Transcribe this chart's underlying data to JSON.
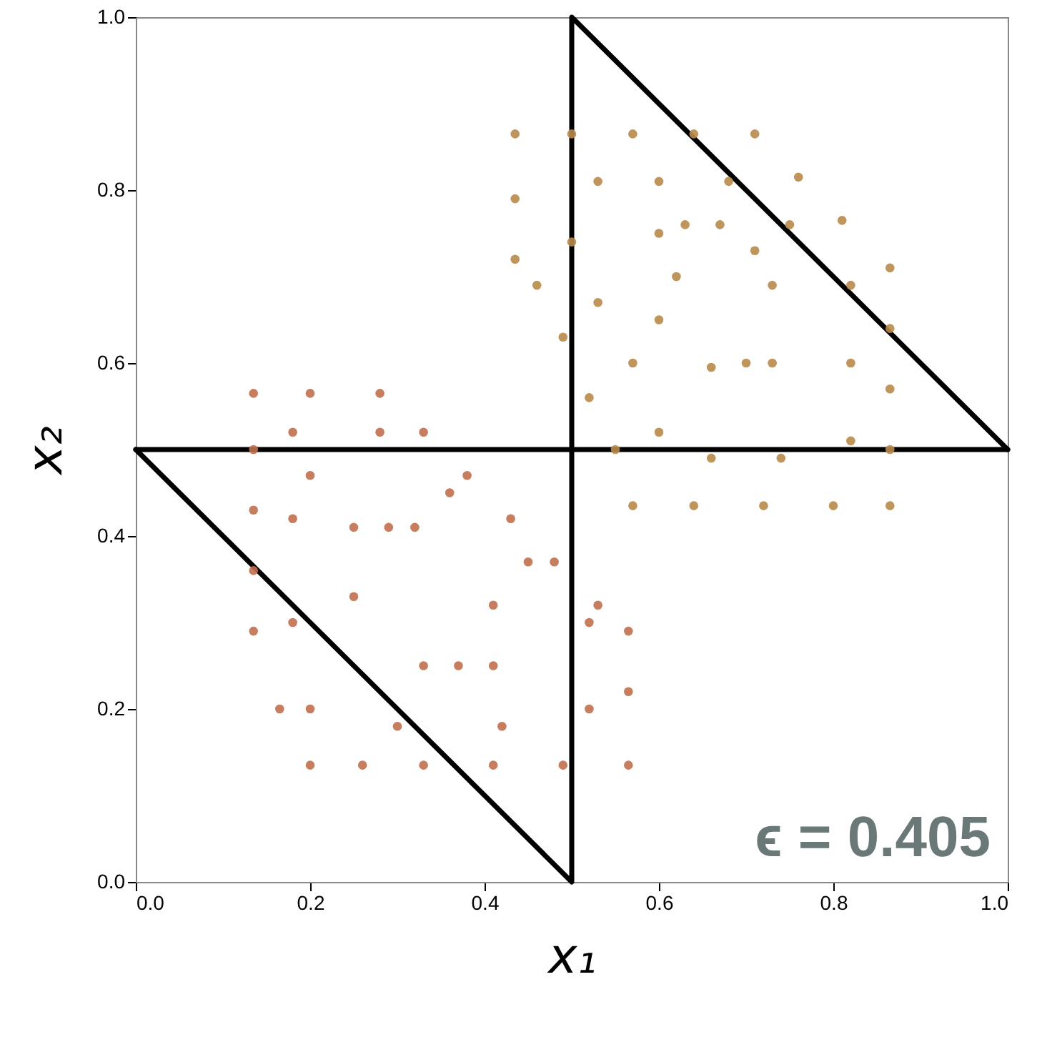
{
  "chart_data": {
    "type": "scatter",
    "xlabel": "x₁",
    "ylabel": "x₂",
    "xlim": [
      0,
      1
    ],
    "ylim": [
      0,
      1
    ],
    "xticks": [
      {
        "value": 0,
        "label": "0.0"
      },
      {
        "value": 0.2,
        "label": "0.2"
      },
      {
        "value": 0.4,
        "label": "0.4"
      },
      {
        "value": 0.6,
        "label": "0.6"
      },
      {
        "value": 0.8,
        "label": "0.8"
      },
      {
        "value": 1,
        "label": "1.0"
      }
    ],
    "yticks": [
      {
        "value": 0,
        "label": "0.0"
      },
      {
        "value": 0.2,
        "label": "0.2"
      },
      {
        "value": 0.4,
        "label": "0.4"
      },
      {
        "value": 0.6,
        "label": "0.6"
      },
      {
        "value": 0.8,
        "label": "0.8"
      },
      {
        "value": 1,
        "label": "1.0"
      }
    ],
    "grid": false,
    "annotations": [
      "ϵ = 0.405"
    ],
    "series": [
      {
        "color": "#b98a4a",
        "x": [
          0.435,
          0.5,
          0.57,
          0.64,
          0.71,
          0.76,
          0.81,
          0.865,
          0.865,
          0.865,
          0.865,
          0.865,
          0.8,
          0.72,
          0.64,
          0.57,
          0.55,
          0.52,
          0.49,
          0.46,
          0.435,
          0.435,
          0.53,
          0.6,
          0.68,
          0.75,
          0.82,
          0.82,
          0.82,
          0.74,
          0.66,
          0.6,
          0.57,
          0.53,
          0.5,
          0.6,
          0.67,
          0.73,
          0.73,
          0.66,
          0.6,
          0.63,
          0.71,
          0.7,
          0.62
        ],
        "values": [
          0.865,
          0.865,
          0.865,
          0.865,
          0.865,
          0.815,
          0.765,
          0.71,
          0.64,
          0.57,
          0.5,
          0.435,
          0.435,
          0.435,
          0.435,
          0.435,
          0.5,
          0.56,
          0.63,
          0.69,
          0.72,
          0.79,
          0.81,
          0.81,
          0.81,
          0.76,
          0.69,
          0.6,
          0.51,
          0.49,
          0.49,
          0.52,
          0.6,
          0.67,
          0.74,
          0.75,
          0.76,
          0.69,
          0.6,
          0.595,
          0.65,
          0.76,
          0.73,
          0.6,
          0.7
        ]
      },
      {
        "color": "#c0704e",
        "x": [
          0.135,
          0.2,
          0.28,
          0.33,
          0.38,
          0.43,
          0.48,
          0.53,
          0.565,
          0.565,
          0.565,
          0.49,
          0.41,
          0.33,
          0.26,
          0.2,
          0.165,
          0.135,
          0.135,
          0.135,
          0.135,
          0.18,
          0.28,
          0.36,
          0.45,
          0.52,
          0.52,
          0.42,
          0.3,
          0.2,
          0.18,
          0.18,
          0.2,
          0.25,
          0.32,
          0.41,
          0.41,
          0.33,
          0.25,
          0.37,
          0.29
        ],
        "values": [
          0.565,
          0.565,
          0.565,
          0.52,
          0.47,
          0.42,
          0.37,
          0.32,
          0.29,
          0.22,
          0.135,
          0.135,
          0.135,
          0.135,
          0.135,
          0.135,
          0.2,
          0.29,
          0.36,
          0.43,
          0.5,
          0.52,
          0.52,
          0.45,
          0.37,
          0.3,
          0.2,
          0.18,
          0.18,
          0.2,
          0.3,
          0.42,
          0.47,
          0.41,
          0.41,
          0.32,
          0.25,
          0.25,
          0.33,
          0.25,
          0.41
        ]
      },
      {
        "type": "line",
        "color": "#000000",
        "x": [
          0,
          0.5,
          0.5,
          1
        ],
        "values": [
          0.5,
          0,
          1,
          0.5
        ]
      },
      {
        "type": "line",
        "color": "#000000",
        "x": [
          0,
          1
        ],
        "values": [
          0.5,
          0.5
        ]
      }
    ]
  }
}
